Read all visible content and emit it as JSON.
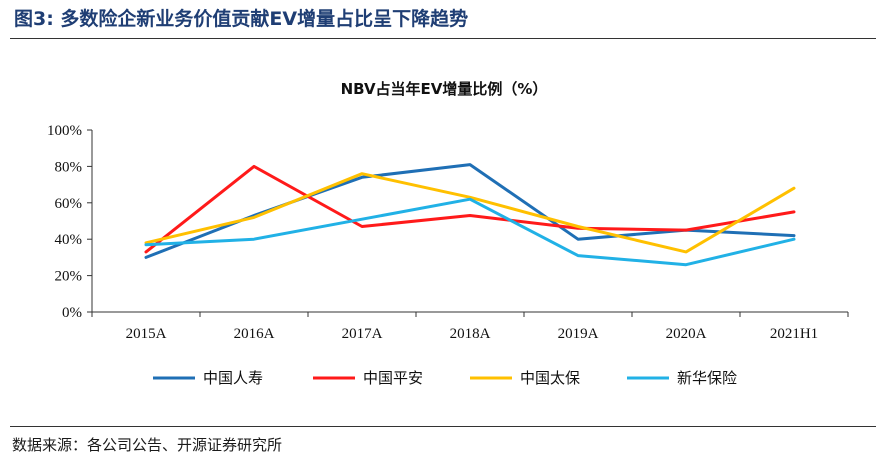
{
  "figure": {
    "title": "图3:  多数险企新业务价值贡献EV增量占比呈下降趋势",
    "source": "数据来源：各公司公告、开源证券研究所"
  },
  "chart_data": {
    "type": "line",
    "title": "NBV占当年EV增量比例（%）",
    "categories": [
      "2015A",
      "2016A",
      "2017A",
      "2018A",
      "2019A",
      "2020A",
      "2021H1"
    ],
    "y_ticks": [
      "0%",
      "20%",
      "40%",
      "60%",
      "80%",
      "100%"
    ],
    "ylim": [
      0,
      100
    ],
    "grid": false,
    "legend_position": "bottom",
    "series": [
      {
        "name": "中国人寿",
        "color": "#1f6fb5",
        "values": [
          30,
          53,
          74,
          81,
          40,
          45,
          42
        ]
      },
      {
        "name": "中国平安",
        "color": "#ff1a1a",
        "values": [
          33,
          80,
          47,
          53,
          46,
          45,
          55
        ]
      },
      {
        "name": "中国太保",
        "color": "#ffc000",
        "values": [
          38,
          52,
          76,
          63,
          47,
          33,
          68
        ]
      },
      {
        "name": "新华保险",
        "color": "#21b1e6",
        "values": [
          37,
          40,
          51,
          62,
          31,
          26,
          40
        ]
      }
    ]
  }
}
